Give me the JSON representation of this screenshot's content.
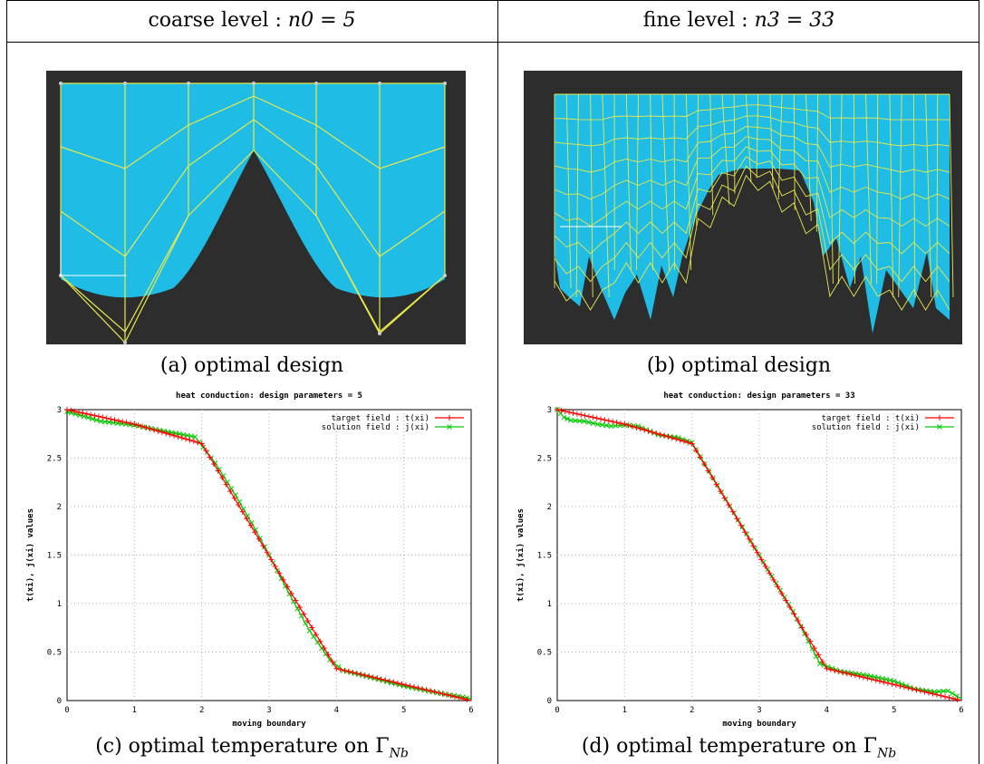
{
  "header": {
    "left_prefix": "coarse level : ",
    "left_math": "n0 = 5",
    "right_prefix": "fine level : ",
    "right_math": "n3 = 33"
  },
  "captions": {
    "a": "(a) optimal design",
    "b": "(b) optimal design",
    "c_prefix": "(c) optimal temperature on Γ",
    "c_sub": "Nb",
    "d_prefix": "(d) optimal temperature on Γ",
    "d_sub": "Nb"
  },
  "colors": {
    "background_dark": "#2d2d2d",
    "domain_fill": "#1fbde6",
    "mesh_lines": "#e8e84a",
    "target_series": "#ff0000",
    "solution_series": "#00cc00",
    "grid": "#b0b0b0"
  },
  "chart_data": [
    {
      "type": "line",
      "title": "heat conduction: design parameters = 5",
      "xlabel": "moving boundary",
      "ylabel": "t(xi), j(xi) values",
      "xlim": [
        0,
        6
      ],
      "ylim": [
        0,
        3
      ],
      "xticks": [
        0,
        1,
        2,
        3,
        4,
        5,
        6
      ],
      "yticks": [
        0,
        0.5,
        1,
        1.5,
        2,
        2.5,
        3
      ],
      "ytick_labels": [
        "0",
        "0.5",
        "1",
        "1.5",
        "2",
        "2.5",
        "3"
      ],
      "grid": true,
      "legend_position": "top-right",
      "series": [
        {
          "name": "target field : t(xi)",
          "marker": "+",
          "color": "#ff0000",
          "x": [
            0,
            1,
            2,
            4,
            6
          ],
          "y": [
            3.0,
            2.85,
            2.65,
            0.33,
            0.0
          ]
        },
        {
          "name": "solution field : j(xi)",
          "marker": "x",
          "color": "#00cc00",
          "x": [
            0,
            0.5,
            1.0,
            1.5,
            1.9,
            2.2,
            2.5,
            2.8,
            3.0,
            3.3,
            3.6,
            3.9,
            4.1,
            4.5,
            5.0,
            5.5,
            6.0
          ],
          "y": [
            2.98,
            2.88,
            2.84,
            2.77,
            2.72,
            2.45,
            2.12,
            1.76,
            1.5,
            1.1,
            0.72,
            0.42,
            0.31,
            0.24,
            0.15,
            0.08,
            0.02
          ]
        }
      ]
    },
    {
      "type": "line",
      "title": "heat conduction: design parameters = 33",
      "xlabel": "moving boundary",
      "ylabel": "t(xi), j(xi) values",
      "xlim": [
        0,
        6
      ],
      "ylim": [
        0,
        3
      ],
      "xticks": [
        0,
        1,
        2,
        3,
        4,
        5,
        6
      ],
      "yticks": [
        0,
        0.5,
        1,
        1.5,
        2,
        2.5,
        3
      ],
      "ytick_labels": [
        "0",
        "0.5",
        "1",
        "1.5",
        "2",
        "2.5",
        "3"
      ],
      "grid": true,
      "legend_position": "top-right",
      "series": [
        {
          "name": "target field : t(xi)",
          "marker": "+",
          "color": "#ff0000",
          "x": [
            0,
            1,
            2,
            4,
            6
          ],
          "y": [
            3.0,
            2.85,
            2.65,
            0.33,
            0.0
          ]
        },
        {
          "name": "solution field : j(xi)",
          "marker": "x",
          "color": "#00cc00",
          "x": [
            0,
            0.1,
            0.2,
            0.4,
            0.6,
            0.8,
            1.0,
            1.2,
            1.5,
            1.8,
            2.0,
            2.5,
            3.0,
            3.5,
            3.9,
            4.2,
            4.6,
            5.0,
            5.3,
            5.6,
            5.8,
            6.0
          ],
          "y": [
            3.0,
            2.92,
            2.89,
            2.88,
            2.85,
            2.83,
            2.84,
            2.83,
            2.74,
            2.71,
            2.66,
            2.08,
            1.5,
            0.92,
            0.38,
            0.3,
            0.26,
            0.2,
            0.12,
            0.09,
            0.1,
            0.02
          ]
        }
      ]
    }
  ]
}
